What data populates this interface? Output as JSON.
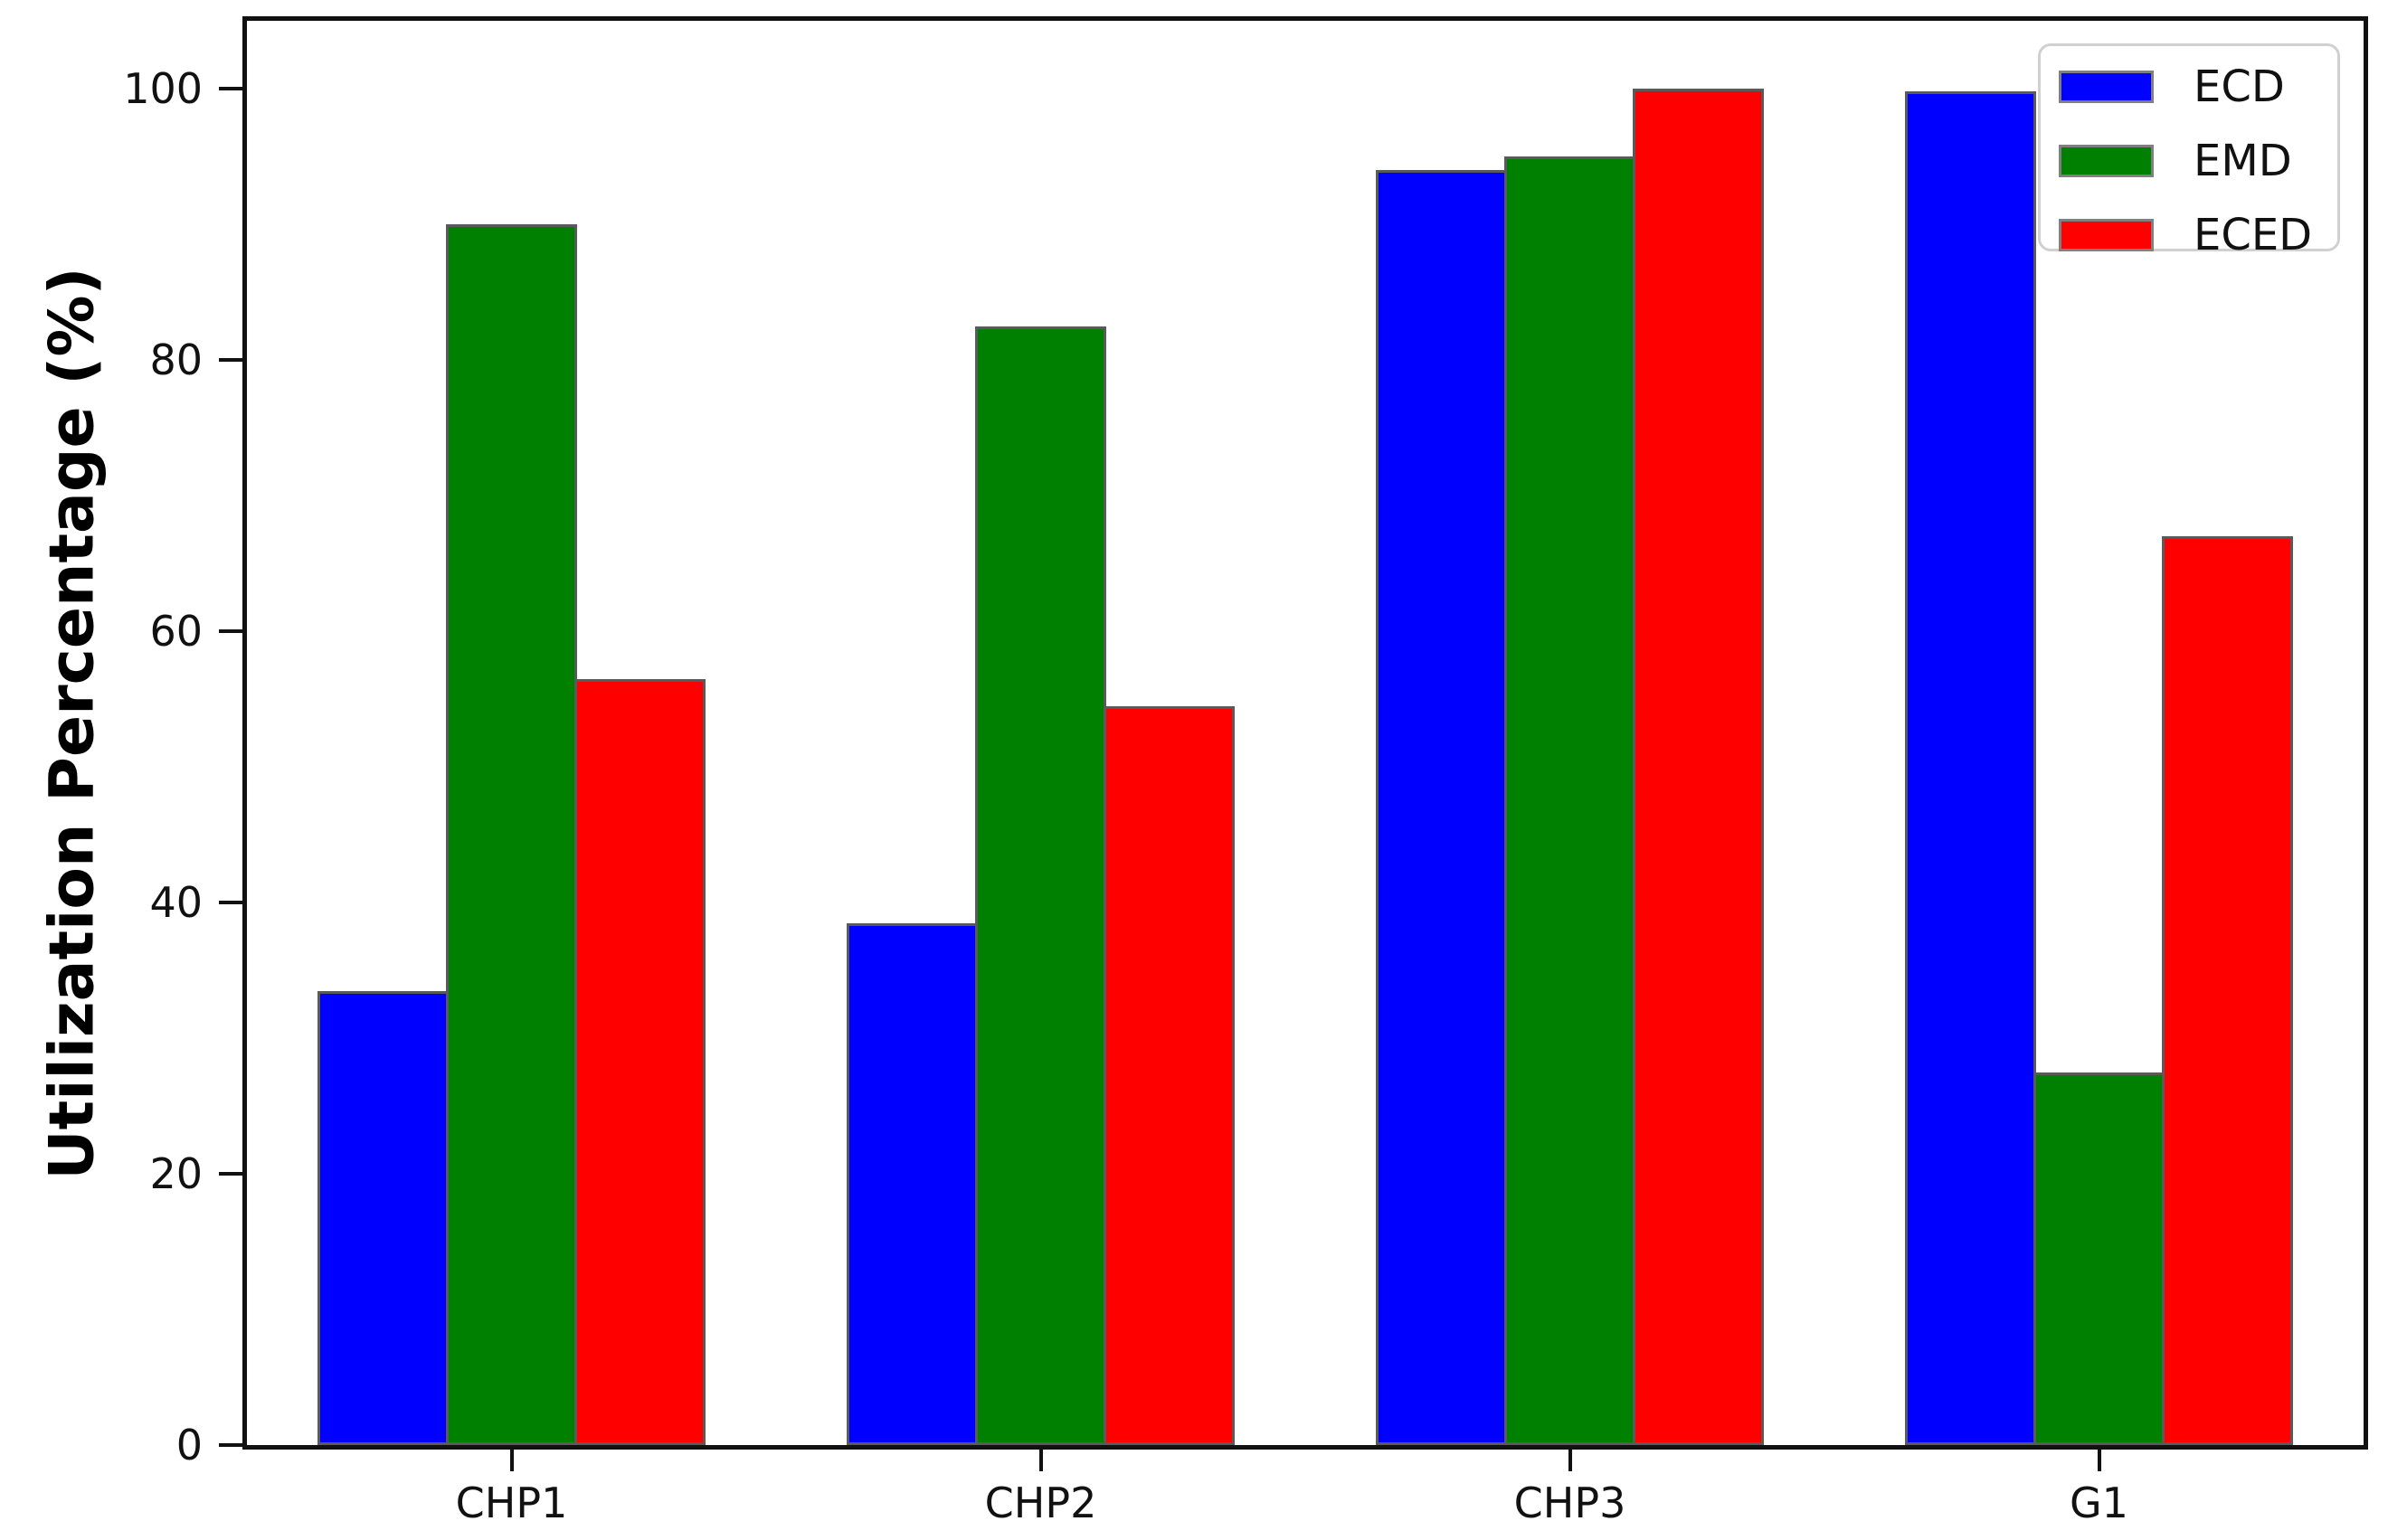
{
  "chart_data": {
    "type": "bar",
    "title": "",
    "xlabel": "",
    "ylabel": "Utilization Percentage (%)",
    "categories": [
      "CHP1",
      "CHP2",
      "CHP3",
      "G1"
    ],
    "series": [
      {
        "name": "ECD",
        "color": "#0000ff",
        "values": [
          33.5,
          38.5,
          94,
          99.8
        ]
      },
      {
        "name": "EMD",
        "color": "#008000",
        "values": [
          90,
          82.5,
          95,
          27.5
        ]
      },
      {
        "name": "ECED",
        "color": "#ff0000",
        "values": [
          56.5,
          54.5,
          100,
          67
        ]
      }
    ],
    "yticks": [
      0,
      20,
      40,
      60,
      80,
      100
    ],
    "ylim": [
      0,
      105
    ],
    "grid": false,
    "legend_position": "upper right",
    "colors": {
      "bar_edge": "#5a5a5a",
      "axis": "#111111"
    }
  }
}
